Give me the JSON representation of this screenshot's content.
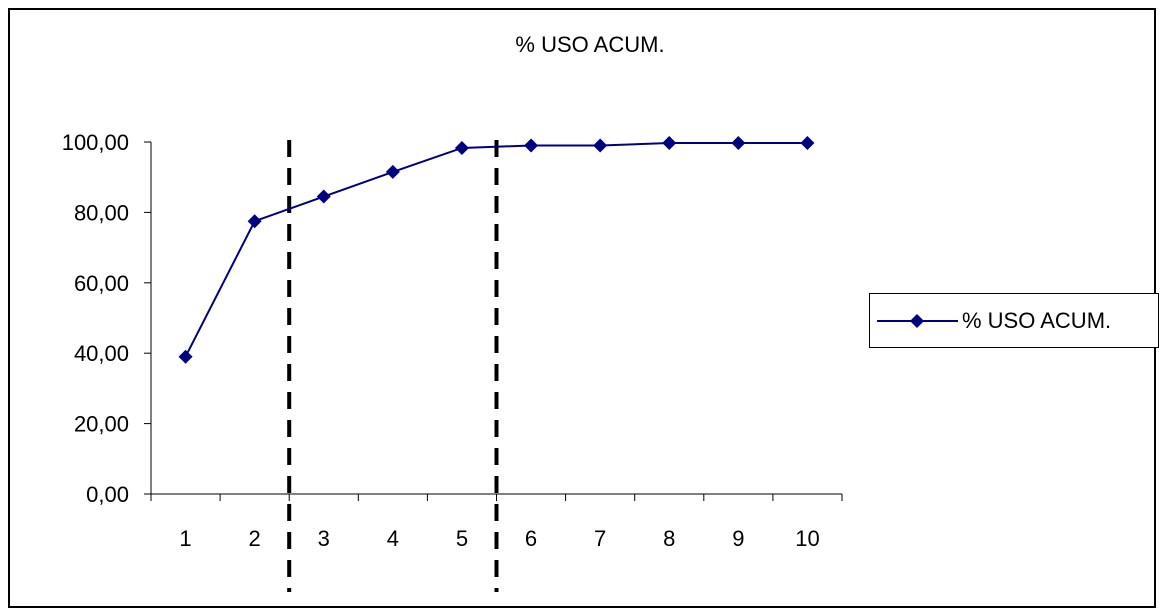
{
  "chart_data": {
    "type": "line",
    "title": "% USO ACUM.",
    "xlabel": "",
    "ylabel": "",
    "categories": [
      "1",
      "2",
      "3",
      "4",
      "5",
      "6",
      "7",
      "8",
      "9",
      "10"
    ],
    "series": [
      {
        "name": "% USO ACUM.",
        "color": "#000080",
        "marker": "diamond",
        "values": [
          39.0,
          77.5,
          84.5,
          91.5,
          98.3,
          99.0,
          99.0,
          99.7,
          99.7,
          99.7
        ]
      }
    ],
    "ylim": [
      0,
      100
    ],
    "yticks": [
      "0,00",
      "20,00",
      "40,00",
      "60,00",
      "80,00",
      "100,00"
    ],
    "grid": false,
    "legend_position": "right",
    "reference_lines": [
      {
        "type": "vertical",
        "between": [
          "2",
          "3"
        ],
        "style": "dashed",
        "color": "#000000"
      },
      {
        "type": "vertical",
        "between": [
          "5",
          "6"
        ],
        "style": "dashed",
        "color": "#000000"
      }
    ]
  }
}
